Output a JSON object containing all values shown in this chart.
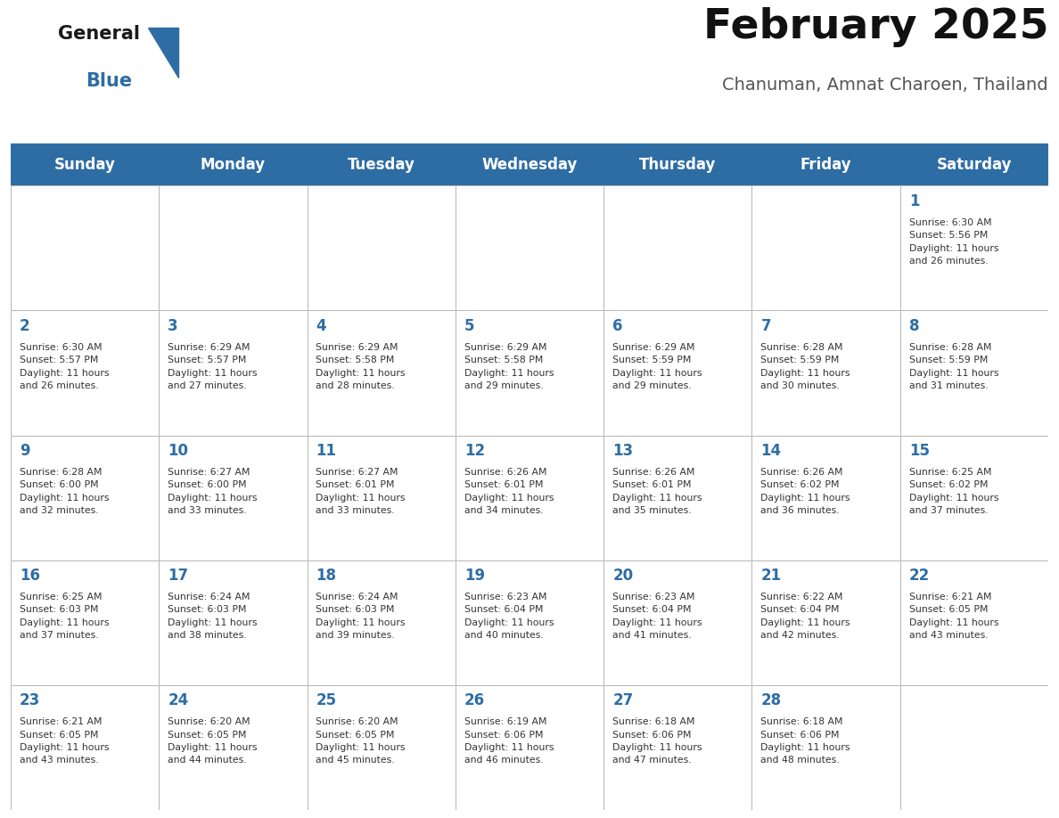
{
  "title": "February 2025",
  "subtitle": "Chanuman, Amnat Charoen, Thailand",
  "header_bg_color": "#2E6DA4",
  "header_text_color": "#FFFFFF",
  "day_headers": [
    "Sunday",
    "Monday",
    "Tuesday",
    "Wednesday",
    "Thursday",
    "Friday",
    "Saturday"
  ],
  "calendar_data": [
    [
      null,
      null,
      null,
      null,
      null,
      null,
      {
        "day": 1,
        "sunrise": "6:30 AM",
        "sunset": "5:56 PM",
        "daylight": "11 hours\nand 26 minutes."
      }
    ],
    [
      {
        "day": 2,
        "sunrise": "6:30 AM",
        "sunset": "5:57 PM",
        "daylight": "11 hours\nand 26 minutes."
      },
      {
        "day": 3,
        "sunrise": "6:29 AM",
        "sunset": "5:57 PM",
        "daylight": "11 hours\nand 27 minutes."
      },
      {
        "day": 4,
        "sunrise": "6:29 AM",
        "sunset": "5:58 PM",
        "daylight": "11 hours\nand 28 minutes."
      },
      {
        "day": 5,
        "sunrise": "6:29 AM",
        "sunset": "5:58 PM",
        "daylight": "11 hours\nand 29 minutes."
      },
      {
        "day": 6,
        "sunrise": "6:29 AM",
        "sunset": "5:59 PM",
        "daylight": "11 hours\nand 29 minutes."
      },
      {
        "day": 7,
        "sunrise": "6:28 AM",
        "sunset": "5:59 PM",
        "daylight": "11 hours\nand 30 minutes."
      },
      {
        "day": 8,
        "sunrise": "6:28 AM",
        "sunset": "5:59 PM",
        "daylight": "11 hours\nand 31 minutes."
      }
    ],
    [
      {
        "day": 9,
        "sunrise": "6:28 AM",
        "sunset": "6:00 PM",
        "daylight": "11 hours\nand 32 minutes."
      },
      {
        "day": 10,
        "sunrise": "6:27 AM",
        "sunset": "6:00 PM",
        "daylight": "11 hours\nand 33 minutes."
      },
      {
        "day": 11,
        "sunrise": "6:27 AM",
        "sunset": "6:01 PM",
        "daylight": "11 hours\nand 33 minutes."
      },
      {
        "day": 12,
        "sunrise": "6:26 AM",
        "sunset": "6:01 PM",
        "daylight": "11 hours\nand 34 minutes."
      },
      {
        "day": 13,
        "sunrise": "6:26 AM",
        "sunset": "6:01 PM",
        "daylight": "11 hours\nand 35 minutes."
      },
      {
        "day": 14,
        "sunrise": "6:26 AM",
        "sunset": "6:02 PM",
        "daylight": "11 hours\nand 36 minutes."
      },
      {
        "day": 15,
        "sunrise": "6:25 AM",
        "sunset": "6:02 PM",
        "daylight": "11 hours\nand 37 minutes."
      }
    ],
    [
      {
        "day": 16,
        "sunrise": "6:25 AM",
        "sunset": "6:03 PM",
        "daylight": "11 hours\nand 37 minutes."
      },
      {
        "day": 17,
        "sunrise": "6:24 AM",
        "sunset": "6:03 PM",
        "daylight": "11 hours\nand 38 minutes."
      },
      {
        "day": 18,
        "sunrise": "6:24 AM",
        "sunset": "6:03 PM",
        "daylight": "11 hours\nand 39 minutes."
      },
      {
        "day": 19,
        "sunrise": "6:23 AM",
        "sunset": "6:04 PM",
        "daylight": "11 hours\nand 40 minutes."
      },
      {
        "day": 20,
        "sunrise": "6:23 AM",
        "sunset": "6:04 PM",
        "daylight": "11 hours\nand 41 minutes."
      },
      {
        "day": 21,
        "sunrise": "6:22 AM",
        "sunset": "6:04 PM",
        "daylight": "11 hours\nand 42 minutes."
      },
      {
        "day": 22,
        "sunrise": "6:21 AM",
        "sunset": "6:05 PM",
        "daylight": "11 hours\nand 43 minutes."
      }
    ],
    [
      {
        "day": 23,
        "sunrise": "6:21 AM",
        "sunset": "6:05 PM",
        "daylight": "11 hours\nand 43 minutes."
      },
      {
        "day": 24,
        "sunrise": "6:20 AM",
        "sunset": "6:05 PM",
        "daylight": "11 hours\nand 44 minutes."
      },
      {
        "day": 25,
        "sunrise": "6:20 AM",
        "sunset": "6:05 PM",
        "daylight": "11 hours\nand 45 minutes."
      },
      {
        "day": 26,
        "sunrise": "6:19 AM",
        "sunset": "6:06 PM",
        "daylight": "11 hours\nand 46 minutes."
      },
      {
        "day": 27,
        "sunrise": "6:18 AM",
        "sunset": "6:06 PM",
        "daylight": "11 hours\nand 47 minutes."
      },
      {
        "day": 28,
        "sunrise": "6:18 AM",
        "sunset": "6:06 PM",
        "daylight": "11 hours\nand 48 minutes."
      },
      null
    ]
  ],
  "border_color": "#AAAAAA",
  "header_border_color": "#1a5a8a",
  "day_number_color": "#2E6DA4",
  "info_text_color": "#333333",
  "logo_general_color": "#1a1a1a",
  "logo_blue_color": "#2E6DA4",
  "cell_bg": "#FFFFFF",
  "fig_width": 11.88,
  "fig_height": 9.18,
  "fig_dpi": 100
}
